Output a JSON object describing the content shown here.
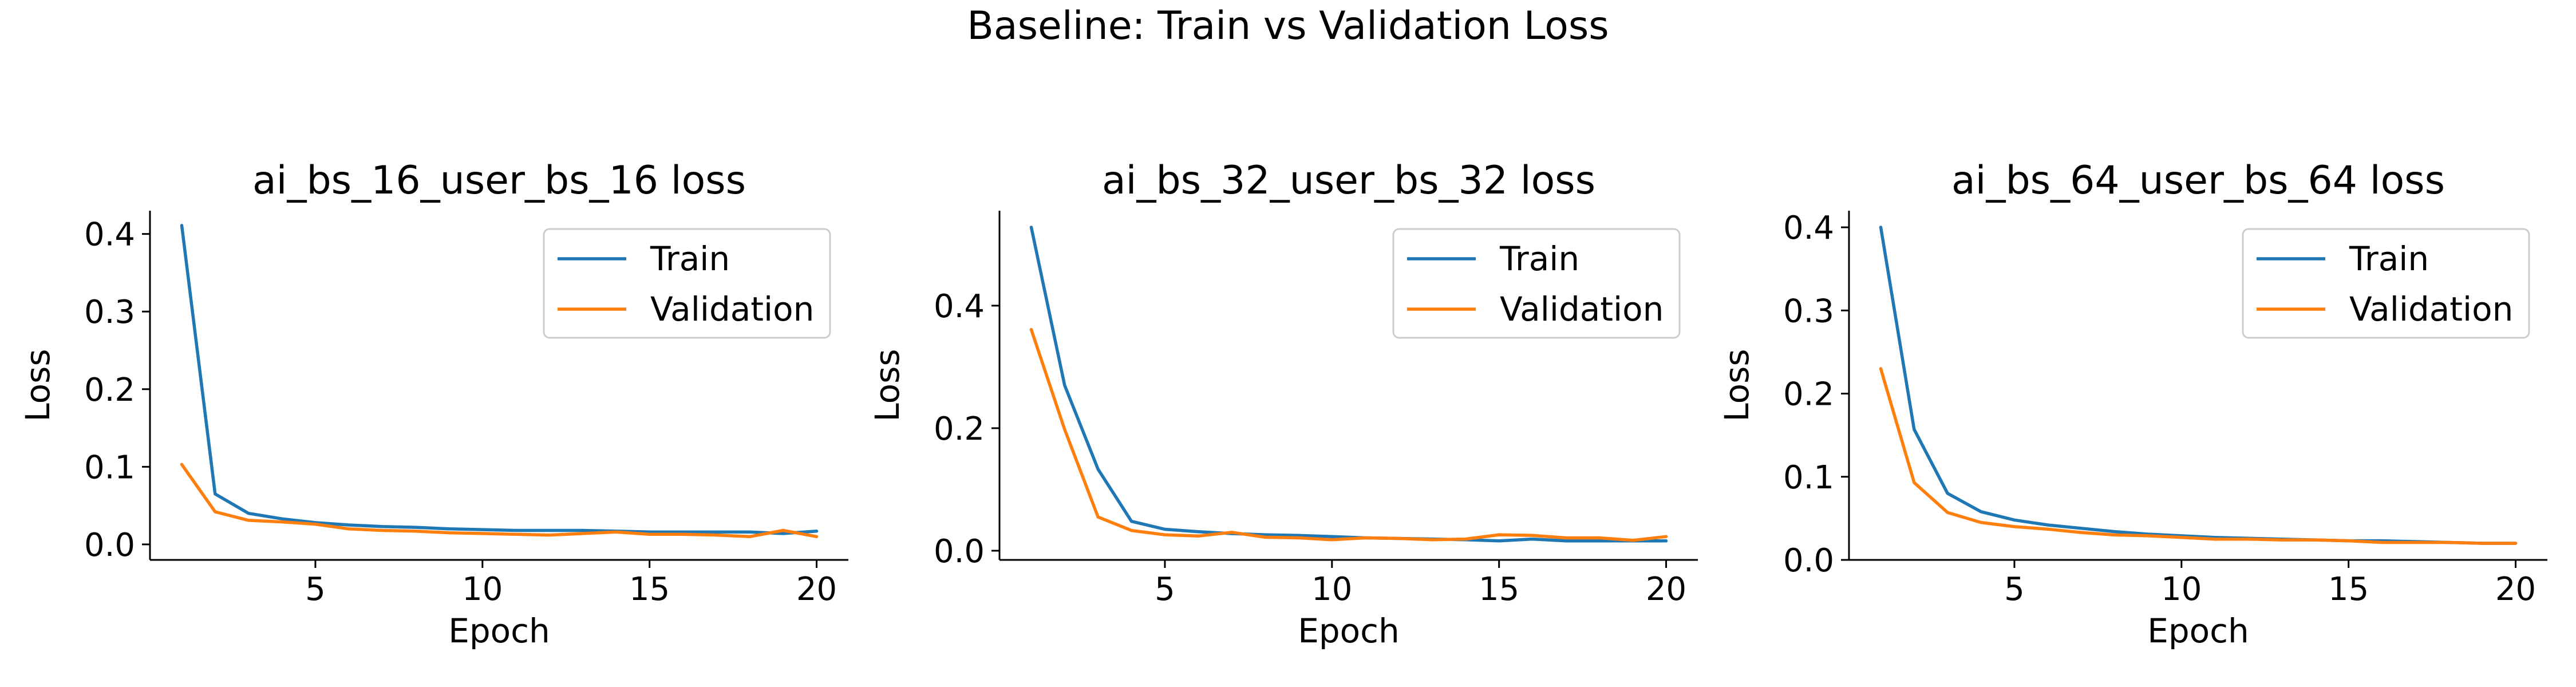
{
  "figure": {
    "title": "Baseline: Train vs Validation Loss"
  },
  "colors": {
    "train": "#1f77b4",
    "validation": "#ff7f0e",
    "axis": "#000000",
    "background": "#ffffff"
  },
  "chart_data": [
    {
      "type": "line",
      "title": "ai_bs_16_user_bs_16 loss",
      "xlabel": "Epoch",
      "ylabel": "Loss",
      "xlim": [
        0.05,
        20.95
      ],
      "ylim": [
        -0.02,
        0.43
      ],
      "xticks": [
        5,
        10,
        15,
        20
      ],
      "yticks": [
        0.0,
        0.1,
        0.2,
        0.3,
        0.4
      ],
      "ytick_labels": [
        "0.0",
        "0.1",
        "0.2",
        "0.3",
        "0.4"
      ],
      "grid": false,
      "legend": "top-right",
      "x": [
        1,
        2,
        3,
        4,
        5,
        6,
        7,
        8,
        9,
        10,
        11,
        12,
        13,
        14,
        15,
        16,
        17,
        18,
        19,
        20
      ],
      "series": [
        {
          "name": "Train",
          "values": [
            0.411,
            0.065,
            0.04,
            0.033,
            0.028,
            0.025,
            0.023,
            0.022,
            0.02,
            0.019,
            0.018,
            0.018,
            0.018,
            0.017,
            0.016,
            0.016,
            0.016,
            0.016,
            0.014,
            0.017
          ]
        },
        {
          "name": "Validation",
          "values": [
            0.103,
            0.042,
            0.031,
            0.029,
            0.026,
            0.02,
            0.018,
            0.017,
            0.015,
            0.014,
            0.013,
            0.012,
            0.014,
            0.016,
            0.013,
            0.013,
            0.012,
            0.01,
            0.018,
            0.01
          ]
        }
      ]
    },
    {
      "type": "line",
      "title": "ai_bs_32_user_bs_32 loss",
      "xlabel": "Epoch",
      "ylabel": "Loss",
      "xlim": [
        0.05,
        20.95
      ],
      "ylim": [
        -0.015,
        0.555
      ],
      "xticks": [
        5,
        10,
        15,
        20
      ],
      "yticks": [
        0.0,
        0.2,
        0.4
      ],
      "ytick_labels": [
        "0.0",
        "0.2",
        "0.4"
      ],
      "grid": false,
      "legend": "top-right",
      "x": [
        1,
        2,
        3,
        4,
        5,
        6,
        7,
        8,
        9,
        10,
        11,
        12,
        13,
        14,
        15,
        16,
        17,
        18,
        19,
        20
      ],
      "series": [
        {
          "name": "Train",
          "values": [
            0.528,
            0.27,
            0.133,
            0.048,
            0.035,
            0.031,
            0.028,
            0.026,
            0.025,
            0.023,
            0.021,
            0.02,
            0.019,
            0.018,
            0.016,
            0.019,
            0.016,
            0.016,
            0.016,
            0.016
          ]
        },
        {
          "name": "Validation",
          "values": [
            0.361,
            0.198,
            0.055,
            0.033,
            0.026,
            0.024,
            0.03,
            0.022,
            0.021,
            0.018,
            0.021,
            0.02,
            0.018,
            0.019,
            0.026,
            0.025,
            0.021,
            0.021,
            0.017,
            0.023
          ]
        }
      ]
    },
    {
      "type": "line",
      "title": "ai_bs_64_user_bs_64 loss",
      "xlabel": "Epoch",
      "ylabel": "Loss",
      "xlim": [
        0.05,
        20.95
      ],
      "ylim": [
        0.0,
        0.42
      ],
      "xticks": [
        5,
        10,
        15,
        20
      ],
      "yticks": [
        0.0,
        0.1,
        0.2,
        0.3,
        0.4
      ],
      "ytick_labels": [
        "0.0",
        "0.1",
        "0.2",
        "0.3",
        "0.4"
      ],
      "grid": false,
      "legend": "top-right",
      "x": [
        1,
        2,
        3,
        4,
        5,
        6,
        7,
        8,
        9,
        10,
        11,
        12,
        13,
        14,
        15,
        16,
        17,
        18,
        19,
        20
      ],
      "series": [
        {
          "name": "Train",
          "values": [
            0.4,
            0.157,
            0.08,
            0.058,
            0.048,
            0.042,
            0.038,
            0.034,
            0.031,
            0.029,
            0.027,
            0.026,
            0.025,
            0.024,
            0.023,
            0.023,
            0.022,
            0.021,
            0.02,
            0.02
          ]
        },
        {
          "name": "Validation",
          "values": [
            0.23,
            0.093,
            0.057,
            0.045,
            0.04,
            0.037,
            0.033,
            0.03,
            0.029,
            0.027,
            0.025,
            0.025,
            0.024,
            0.024,
            0.023,
            0.021,
            0.021,
            0.021,
            0.02,
            0.02
          ]
        }
      ]
    }
  ]
}
